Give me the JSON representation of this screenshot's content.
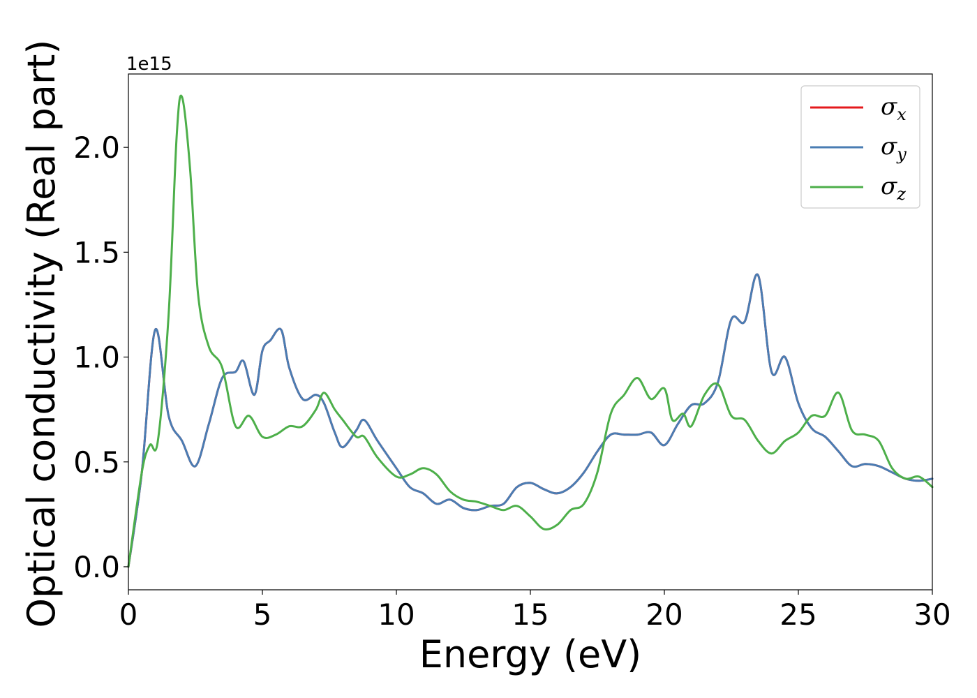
{
  "chart_data": {
    "type": "line",
    "xlabel": "Energy (eV)",
    "ylabel": "Optical conductivity (Real part)",
    "y_offset_text": "1e15",
    "xlim": [
      0,
      30
    ],
    "ylim": [
      -0.11,
      2.35
    ],
    "x_ticks": [
      0,
      5,
      10,
      15,
      20,
      25,
      30
    ],
    "x_tick_labels": [
      "0",
      "5",
      "10",
      "15",
      "20",
      "25",
      "30"
    ],
    "y_ticks": [
      0.0,
      0.5,
      1.0,
      1.5,
      2.0
    ],
    "y_tick_labels": [
      "0.0",
      "0.5",
      "1.0",
      "1.5",
      "2.0"
    ],
    "grid": false,
    "legend_position": "top-right",
    "series": [
      {
        "name": "σx",
        "symbol": "σ",
        "subscript": "x",
        "color": "#e41a1c",
        "x": [
          0,
          0.5,
          1.0,
          1.5,
          2.0,
          2.5,
          3.0,
          3.5,
          4.0,
          4.3,
          4.7,
          5.0,
          5.3,
          5.7,
          6.0,
          6.5,
          7.0,
          7.3,
          7.7,
          8.0,
          8.5,
          8.8,
          9.3,
          10.0,
          10.5,
          11.0,
          11.5,
          12.0,
          12.5,
          13.0,
          13.5,
          14.0,
          14.5,
          15.0,
          15.5,
          16.0,
          16.5,
          17.0,
          17.5,
          18.0,
          18.5,
          19.0,
          19.5,
          20.0,
          20.5,
          21.0,
          21.5,
          22.0,
          22.5,
          23.0,
          23.5,
          24.0,
          24.5,
          25.0,
          25.5,
          26.0,
          26.5,
          27.0,
          27.5,
          28.0,
          28.5,
          29.0,
          29.5,
          30.0
        ],
        "y": [
          0.0,
          0.45,
          1.13,
          0.72,
          0.6,
          0.48,
          0.68,
          0.9,
          0.93,
          0.98,
          0.82,
          1.03,
          1.08,
          1.13,
          0.95,
          0.8,
          0.82,
          0.78,
          0.64,
          0.57,
          0.65,
          0.7,
          0.6,
          0.47,
          0.38,
          0.35,
          0.3,
          0.32,
          0.28,
          0.27,
          0.29,
          0.3,
          0.38,
          0.4,
          0.37,
          0.35,
          0.38,
          0.45,
          0.55,
          0.63,
          0.63,
          0.63,
          0.64,
          0.58,
          0.68,
          0.77,
          0.78,
          0.88,
          1.18,
          1.17,
          1.39,
          0.93,
          1.0,
          0.78,
          0.66,
          0.62,
          0.55,
          0.48,
          0.49,
          0.48,
          0.45,
          0.42,
          0.41,
          0.42
        ]
      },
      {
        "name": "σy",
        "symbol": "σ",
        "subscript": "y",
        "color": "#4a7db3",
        "x": [
          0,
          0.5,
          1.0,
          1.5,
          2.0,
          2.5,
          3.0,
          3.5,
          4.0,
          4.3,
          4.7,
          5.0,
          5.3,
          5.7,
          6.0,
          6.5,
          7.0,
          7.3,
          7.7,
          8.0,
          8.5,
          8.8,
          9.3,
          10.0,
          10.5,
          11.0,
          11.5,
          12.0,
          12.5,
          13.0,
          13.5,
          14.0,
          14.5,
          15.0,
          15.5,
          16.0,
          16.5,
          17.0,
          17.5,
          18.0,
          18.5,
          19.0,
          19.5,
          20.0,
          20.5,
          21.0,
          21.5,
          22.0,
          22.5,
          23.0,
          23.5,
          24.0,
          24.5,
          25.0,
          25.5,
          26.0,
          26.5,
          27.0,
          27.5,
          28.0,
          28.5,
          29.0,
          29.5,
          30.0
        ],
        "y": [
          0.0,
          0.45,
          1.13,
          0.72,
          0.6,
          0.48,
          0.68,
          0.9,
          0.93,
          0.98,
          0.82,
          1.03,
          1.08,
          1.13,
          0.95,
          0.8,
          0.82,
          0.78,
          0.64,
          0.57,
          0.65,
          0.7,
          0.6,
          0.47,
          0.38,
          0.35,
          0.3,
          0.32,
          0.28,
          0.27,
          0.29,
          0.3,
          0.38,
          0.4,
          0.37,
          0.35,
          0.38,
          0.45,
          0.55,
          0.63,
          0.63,
          0.63,
          0.64,
          0.58,
          0.68,
          0.77,
          0.78,
          0.88,
          1.18,
          1.17,
          1.39,
          0.93,
          1.0,
          0.78,
          0.66,
          0.62,
          0.55,
          0.48,
          0.49,
          0.48,
          0.45,
          0.42,
          0.41,
          0.42
        ]
      },
      {
        "name": "σz",
        "symbol": "σ",
        "subscript": "z",
        "color": "#4daf4a",
        "x": [
          0,
          0.5,
          0.8,
          1.1,
          1.5,
          1.8,
          2.0,
          2.3,
          2.6,
          3.0,
          3.5,
          4.0,
          4.5,
          5.0,
          5.5,
          6.0,
          6.5,
          7.0,
          7.3,
          7.7,
          8.0,
          8.5,
          8.8,
          9.3,
          10.0,
          10.5,
          11.0,
          11.5,
          12.0,
          12.5,
          13.0,
          13.5,
          14.0,
          14.5,
          15.0,
          15.5,
          16.0,
          16.5,
          17.0,
          17.5,
          18.0,
          18.5,
          19.0,
          19.5,
          20.0,
          20.3,
          20.7,
          21.0,
          21.5,
          22.0,
          22.5,
          23.0,
          23.5,
          24.0,
          24.5,
          25.0,
          25.5,
          26.0,
          26.5,
          27.0,
          27.5,
          28.0,
          28.5,
          29.0,
          29.5,
          30.0
        ],
        "y": [
          0.0,
          0.45,
          0.58,
          0.6,
          1.2,
          2.05,
          2.24,
          1.9,
          1.3,
          1.05,
          0.95,
          0.67,
          0.72,
          0.62,
          0.63,
          0.67,
          0.67,
          0.75,
          0.83,
          0.75,
          0.7,
          0.62,
          0.62,
          0.52,
          0.43,
          0.44,
          0.47,
          0.44,
          0.36,
          0.32,
          0.31,
          0.29,
          0.27,
          0.29,
          0.24,
          0.18,
          0.2,
          0.27,
          0.3,
          0.45,
          0.73,
          0.82,
          0.9,
          0.8,
          0.85,
          0.7,
          0.73,
          0.67,
          0.82,
          0.87,
          0.72,
          0.7,
          0.6,
          0.54,
          0.6,
          0.64,
          0.72,
          0.72,
          0.83,
          0.65,
          0.63,
          0.6,
          0.47,
          0.42,
          0.43,
          0.38
        ]
      }
    ]
  }
}
